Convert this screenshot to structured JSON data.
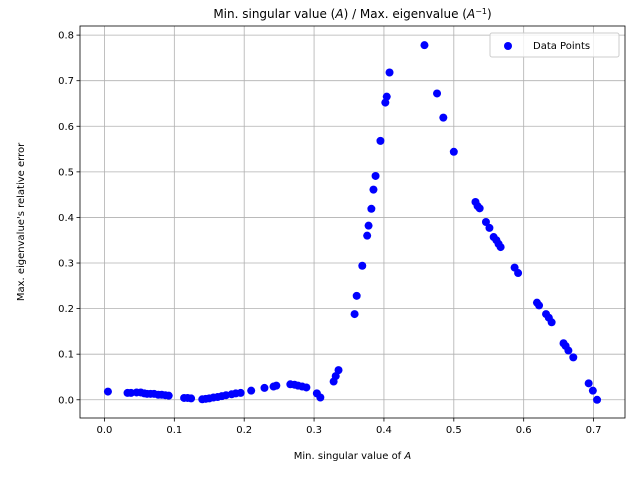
{
  "chart_data": {
    "type": "scatter",
    "title": "Min. singular value (A) / Max. eigenvalue (A⁻¹)",
    "xlabel": "Min. singular value of A",
    "ylabel": "Max. eigenvalue's relative error",
    "xlim": [
      -0.035,
      0.745
    ],
    "ylim": [
      -0.04,
      0.82
    ],
    "xticks": [
      0.0,
      0.1,
      0.2,
      0.3,
      0.4,
      0.5,
      0.6,
      0.7
    ],
    "xtick_labels": [
      "0.0",
      "0.1",
      "0.2",
      "0.3",
      "0.4",
      "0.5",
      "0.6",
      "0.7"
    ],
    "yticks": [
      0.0,
      0.1,
      0.2,
      0.3,
      0.4,
      0.5,
      0.6,
      0.7,
      0.8
    ],
    "ytick_labels": [
      "0.0",
      "0.1",
      "0.2",
      "0.3",
      "0.4",
      "0.5",
      "0.6",
      "0.7",
      "0.8"
    ],
    "grid": true,
    "legend_position": "top-right",
    "series": [
      {
        "name": "Data Points",
        "color": "#0000ff",
        "x": [
          0.005,
          0.033,
          0.038,
          0.046,
          0.052,
          0.057,
          0.061,
          0.066,
          0.071,
          0.077,
          0.082,
          0.087,
          0.092,
          0.114,
          0.119,
          0.124,
          0.14,
          0.145,
          0.15,
          0.156,
          0.162,
          0.168,
          0.174,
          0.182,
          0.188,
          0.195,
          0.21,
          0.229,
          0.242,
          0.246,
          0.266,
          0.272,
          0.277,
          0.283,
          0.289,
          0.304,
          0.309,
          0.328,
          0.331,
          0.335,
          0.358,
          0.361,
          0.369,
          0.376,
          0.378,
          0.382,
          0.385,
          0.388,
          0.395,
          0.402,
          0.404,
          0.408,
          0.458,
          0.476,
          0.485,
          0.5,
          0.531,
          0.534,
          0.537,
          0.546,
          0.551,
          0.557,
          0.561,
          0.564,
          0.567,
          0.587,
          0.592,
          0.619,
          0.622,
          0.632,
          0.636,
          0.64,
          0.657,
          0.66,
          0.664,
          0.671,
          0.693,
          0.699,
          0.705
        ],
        "y": [
          0.018,
          0.015,
          0.015,
          0.016,
          0.016,
          0.014,
          0.013,
          0.013,
          0.013,
          0.011,
          0.011,
          0.01,
          0.009,
          0.004,
          0.004,
          0.003,
          0.001,
          0.002,
          0.003,
          0.005,
          0.006,
          0.008,
          0.01,
          0.012,
          0.014,
          0.015,
          0.02,
          0.026,
          0.029,
          0.031,
          0.034,
          0.033,
          0.031,
          0.029,
          0.027,
          0.014,
          0.005,
          0.04,
          0.052,
          0.065,
          0.188,
          0.228,
          0.294,
          0.36,
          0.382,
          0.419,
          0.461,
          0.491,
          0.568,
          0.652,
          0.665,
          0.718,
          0.778,
          0.672,
          0.619,
          0.544,
          0.434,
          0.425,
          0.42,
          0.39,
          0.377,
          0.357,
          0.35,
          0.342,
          0.335,
          0.29,
          0.278,
          0.213,
          0.207,
          0.188,
          0.18,
          0.17,
          0.124,
          0.118,
          0.108,
          0.093,
          0.036,
          0.02,
          0.0
        ]
      }
    ]
  }
}
